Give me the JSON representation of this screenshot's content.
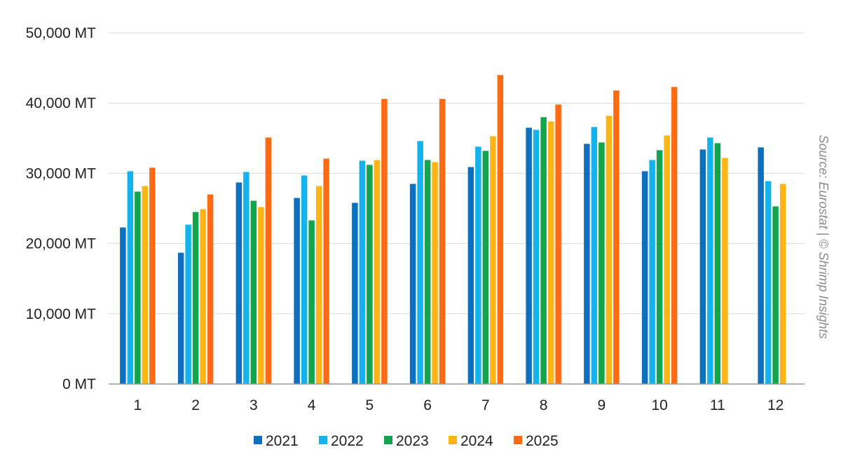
{
  "chart_data": {
    "type": "bar",
    "categories": [
      "1",
      "2",
      "3",
      "4",
      "5",
      "6",
      "7",
      "8",
      "9",
      "10",
      "11",
      "12"
    ],
    "ylim": [
      0,
      50000
    ],
    "y_ticks": [
      "0 MT",
      "10,000 MT",
      "20,000 MT",
      "30,000 MT",
      "40,000 MT",
      "50,000 MT"
    ],
    "y_tick_values": [
      0,
      10000,
      20000,
      30000,
      40000,
      50000
    ],
    "grid": true,
    "legend_position": "bottom",
    "series": [
      {
        "name": "2021",
        "color": "#0f6fbf",
        "values": [
          22300,
          18700,
          28700,
          26500,
          25800,
          28500,
          30900,
          36500,
          34200,
          30300,
          33400,
          33700
        ]
      },
      {
        "name": "2022",
        "color": "#14b3ee",
        "values": [
          30300,
          22700,
          30200,
          29700,
          31800,
          34600,
          33800,
          36200,
          36600,
          31900,
          35100,
          28900
        ]
      },
      {
        "name": "2023",
        "color": "#12a54d",
        "values": [
          27400,
          24500,
          26100,
          23300,
          31200,
          31900,
          33200,
          38000,
          34400,
          33300,
          34300,
          25300
        ]
      },
      {
        "name": "2024",
        "color": "#fdb515",
        "values": [
          28200,
          24900,
          25200,
          28200,
          31900,
          31600,
          35300,
          37400,
          38200,
          35400,
          32200,
          28500
        ]
      },
      {
        "name": "2025",
        "color": "#ff6a13",
        "values": [
          30800,
          27000,
          35100,
          32100,
          40600,
          40600,
          44000,
          39800,
          41800,
          42300,
          null,
          null
        ]
      }
    ],
    "annotation": "Source: Eurostat | © Shrimp Insights"
  }
}
